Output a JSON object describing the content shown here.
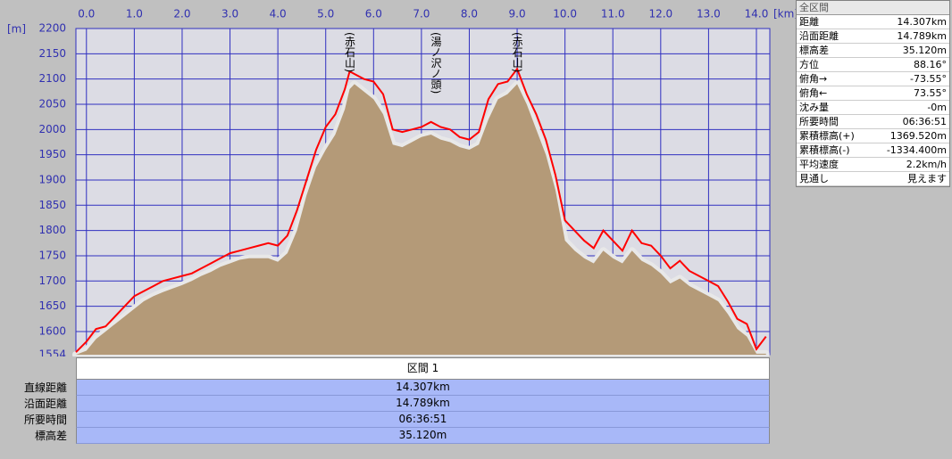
{
  "chart_data": {
    "type": "line",
    "x_label": "[km]",
    "y_label": "[m]",
    "x": [
      -0.22,
      0.0,
      0.2,
      0.4,
      0.6,
      0.8,
      1.0,
      1.2,
      1.4,
      1.6,
      1.8,
      2.0,
      2.2,
      2.4,
      2.6,
      2.8,
      3.0,
      3.2,
      3.4,
      3.6,
      3.8,
      4.0,
      4.2,
      4.4,
      4.6,
      4.8,
      5.0,
      5.2,
      5.4,
      5.5,
      5.6,
      5.8,
      6.0,
      6.2,
      6.4,
      6.6,
      6.8,
      7.0,
      7.2,
      7.4,
      7.6,
      7.8,
      8.0,
      8.2,
      8.4,
      8.6,
      8.8,
      9.0,
      9.2,
      9.4,
      9.6,
      9.8,
      10.0,
      10.2,
      10.4,
      10.6,
      10.8,
      11.0,
      11.2,
      11.4,
      11.6,
      11.8,
      12.0,
      12.2,
      12.4,
      12.6,
      12.8,
      13.0,
      13.2,
      13.4,
      13.6,
      13.8,
      14.0,
      14.2
    ],
    "series": [
      {
        "color": "#ff0000",
        "values": [
          1559,
          1580,
          1605,
          1610,
          1630,
          1650,
          1670,
          1680,
          1690,
          1700,
          1705,
          1710,
          1715,
          1725,
          1735,
          1745,
          1755,
          1760,
          1765,
          1770,
          1775,
          1770,
          1790,
          1840,
          1900,
          1960,
          2005,
          2030,
          2080,
          2115,
          2110,
          2100,
          2095,
          2070,
          2000,
          1995,
          2000,
          2005,
          2015,
          2005,
          2000,
          1985,
          1980,
          1995,
          2060,
          2090,
          2095,
          2120,
          2070,
          2030,
          1980,
          1910,
          1820,
          1800,
          1780,
          1765,
          1800,
          1780,
          1760,
          1800,
          1775,
          1770,
          1750,
          1725,
          1740,
          1720,
          1710,
          1700,
          1690,
          1660,
          1625,
          1615,
          1565,
          1590
        ]
      },
      {
        "color": "#b49a78",
        "values": [
          1554,
          1562,
          1585,
          1600,
          1615,
          1630,
          1645,
          1660,
          1670,
          1678,
          1685,
          1692,
          1700,
          1710,
          1718,
          1728,
          1735,
          1742,
          1745,
          1745,
          1745,
          1738,
          1755,
          1800,
          1870,
          1925,
          1960,
          1990,
          2040,
          2080,
          2090,
          2075,
          2060,
          2030,
          1970,
          1965,
          1975,
          1985,
          1990,
          1980,
          1975,
          1965,
          1960,
          1970,
          2020,
          2060,
          2070,
          2090,
          2050,
          2000,
          1950,
          1880,
          1780,
          1760,
          1745,
          1735,
          1760,
          1745,
          1735,
          1760,
          1740,
          1730,
          1715,
          1695,
          1705,
          1690,
          1680,
          1670,
          1660,
          1635,
          1605,
          1590,
          1556,
          1556
        ]
      }
    ],
    "annotations": [
      {
        "text": "(赤石山)",
        "x": 5.5
      },
      {
        "text": "(湯ノ沢ノ頭)",
        "x": 7.3
      },
      {
        "text": "(赤石山)",
        "x": 9.0
      }
    ],
    "xlim": [
      -0.22,
      14.28
    ],
    "ylim": [
      1554,
      2200
    ],
    "xticks": [
      {
        "value": 0,
        "label": "0.0"
      },
      {
        "value": 1,
        "label": "1.0"
      },
      {
        "value": 2,
        "label": "2.0"
      },
      {
        "value": 3,
        "label": "3.0"
      },
      {
        "value": 4,
        "label": "4.0"
      },
      {
        "value": 5,
        "label": "5.0"
      },
      {
        "value": 6,
        "label": "6.0"
      },
      {
        "value": 7,
        "label": "7.0"
      },
      {
        "value": 8,
        "label": "8.0"
      },
      {
        "value": 9,
        "label": "9.0"
      },
      {
        "value": 10,
        "label": "10.0"
      },
      {
        "value": 11,
        "label": "11.0"
      },
      {
        "value": 12,
        "label": "12.0"
      },
      {
        "value": 13,
        "label": "13.0"
      },
      {
        "value": 14,
        "label": "14.0"
      }
    ],
    "yticks": [
      1554,
      1600,
      1650,
      1700,
      1750,
      1800,
      1850,
      1900,
      1950,
      2000,
      2050,
      2100,
      2150,
      2200
    ],
    "grid": true
  },
  "stats_panel": {
    "title": "全区間",
    "rows": [
      [
        "距離",
        "14.307km"
      ],
      [
        "沿面距離",
        "14.789km"
      ],
      [
        "標高差",
        "35.120m"
      ],
      [
        "方位",
        "88.16°"
      ],
      [
        "俯角→",
        "-73.55°"
      ],
      [
        "俯角←",
        "73.55°"
      ],
      [
        "沈み量",
        "-0m"
      ],
      [
        "所要時間",
        "06:36:51"
      ],
      [
        "累積標高(+)",
        "1369.520m"
      ],
      [
        "累積標高(-)",
        "-1334.400m"
      ],
      [
        "平均速度",
        "2.2km/h"
      ],
      [
        "見通し",
        "見えます"
      ]
    ]
  },
  "section_table": {
    "header": "区間 1",
    "rows": [
      [
        "直線距離",
        "14.307km"
      ],
      [
        "沿面距離",
        "14.789km"
      ],
      [
        "所要時間",
        "06:36:51"
      ],
      [
        "標高差",
        "35.120m"
      ]
    ]
  }
}
